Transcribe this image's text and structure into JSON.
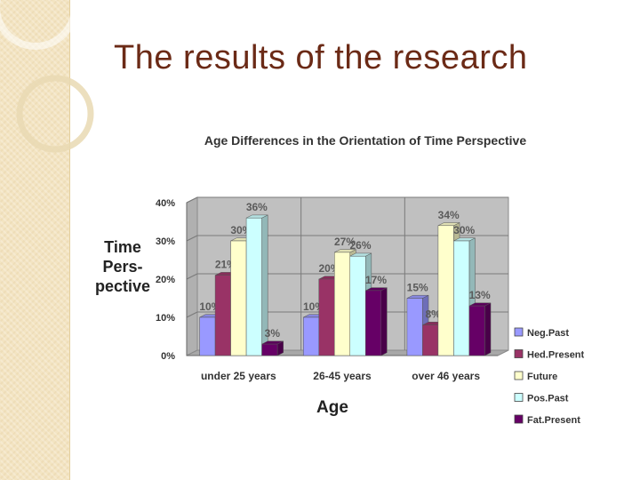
{
  "slide": {
    "title": "The results of the research"
  },
  "colors": {
    "title": "#6b2a16",
    "plot_wall": "#c0c0c0",
    "plot_floor": "#a8a8a8"
  },
  "chart_data": {
    "type": "bar",
    "title": "Age Differences in the Orientation of Time Perspective",
    "ylabel_lines": [
      "Time",
      "Pers-",
      "pective"
    ],
    "xlabel": "Age",
    "categories": [
      "under 25 years",
      "26-45 years",
      "over 46 years"
    ],
    "yticks": [
      "0%",
      "10%",
      "20%",
      "30%",
      "40%"
    ],
    "ylim": [
      0,
      40
    ],
    "grid": true,
    "legend_position": "right",
    "series": [
      {
        "name": "Neg.Past",
        "color": "#9999ff",
        "values": [
          10,
          10,
          15
        ],
        "labels": [
          "10%",
          "10%",
          "15%"
        ]
      },
      {
        "name": "Hed.Present",
        "color": "#993366",
        "values": [
          21,
          20,
          8
        ],
        "labels": [
          "21%",
          "20%",
          "8%"
        ]
      },
      {
        "name": "Future",
        "color": "#ffffcc",
        "values": [
          30,
          27,
          34
        ],
        "labels": [
          "30%",
          "27%",
          "34%"
        ]
      },
      {
        "name": "Pos.Past",
        "color": "#ccffff",
        "values": [
          36,
          26,
          30
        ],
        "labels": [
          "36%",
          "26%",
          "30%"
        ]
      },
      {
        "name": "Fat.Present",
        "color": "#660066",
        "values": [
          3,
          17,
          13
        ],
        "labels": [
          "3%",
          "17%",
          "13%"
        ]
      }
    ]
  }
}
